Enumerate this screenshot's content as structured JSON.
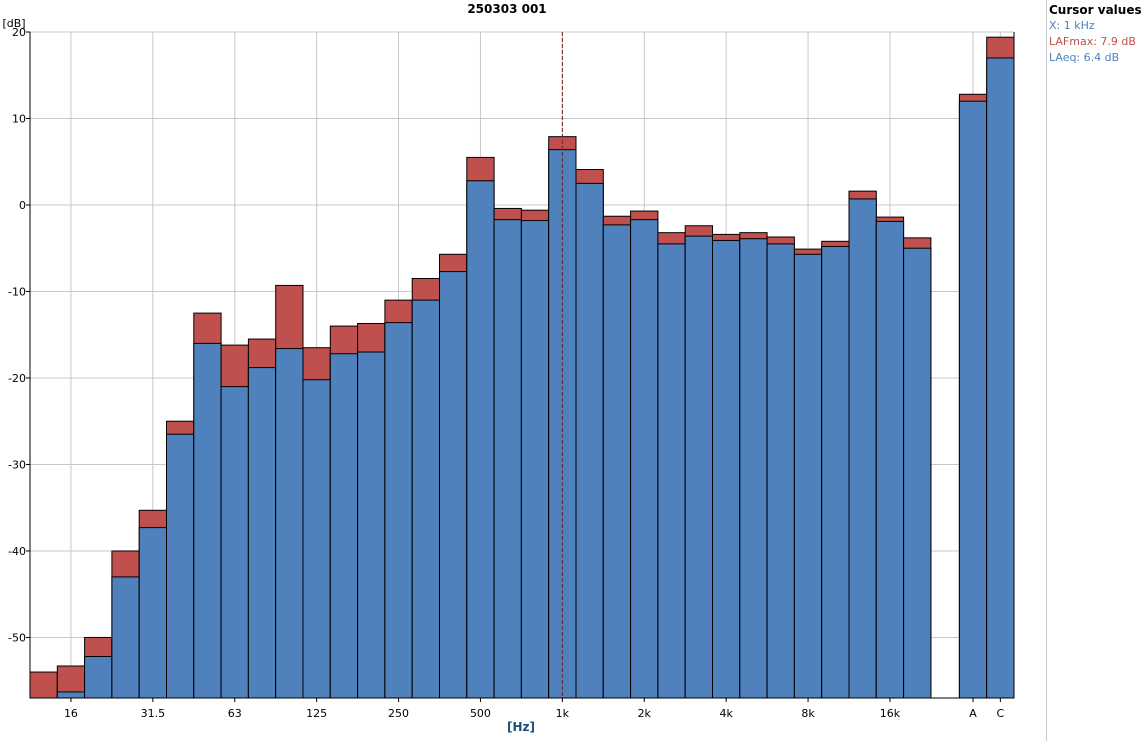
{
  "chart_data": {
    "type": "bar",
    "title": "250303 001",
    "xlabel": "[Hz]",
    "ylabel": "[dB]",
    "ylim": [
      -57,
      20
    ],
    "yticks": [
      20,
      10,
      0,
      -10,
      -20,
      -30,
      -40,
      -50
    ],
    "grid": true,
    "x_scale": "log (1/3-octave bands)",
    "categories": [
      "12.5",
      "16",
      "20",
      "25",
      "31.5",
      "40",
      "50",
      "63",
      "80",
      "100",
      "125",
      "160",
      "200",
      "250",
      "315",
      "400",
      "500",
      "630",
      "800",
      "1k",
      "1.25k",
      "1.6k",
      "2k",
      "2.5k",
      "3.15k",
      "4k",
      "5k",
      "6.3k",
      "8k",
      "10k",
      "12.5k",
      "16k",
      "20k",
      "A",
      "C"
    ],
    "tick_labels": [
      "16",
      "31.5",
      "63",
      "125",
      "250",
      "500",
      "1k",
      "2k",
      "4k",
      "8k",
      "16k",
      "A",
      "C"
    ],
    "tick_categories": [
      "16",
      "31.5",
      "63",
      "125",
      "250",
      "500",
      "1k",
      "2k",
      "4k",
      "8k",
      "16k",
      "A",
      "C"
    ],
    "series": [
      {
        "name": "LAFmax",
        "color": "#c0504d",
        "values": [
          -54.0,
          -53.3,
          -50.0,
          -40.0,
          -35.3,
          -25.0,
          -12.5,
          -16.2,
          -15.5,
          -9.3,
          -16.5,
          -14.0,
          -13.7,
          -11.0,
          -8.5,
          -5.7,
          5.5,
          -0.4,
          -0.6,
          7.9,
          4.1,
          -1.3,
          -0.7,
          -3.2,
          -2.4,
          -3.4,
          -3.2,
          -3.7,
          -5.1,
          -4.2,
          1.6,
          -1.4,
          -3.8,
          12.8,
          19.4
        ]
      },
      {
        "name": "LAeq",
        "color": "#4f81bd",
        "values": [
          null,
          -56.3,
          -52.2,
          -43.0,
          -37.3,
          -26.5,
          -16.0,
          -21.0,
          -18.8,
          -16.6,
          -20.2,
          -17.2,
          -17.0,
          -13.6,
          -11.0,
          -7.7,
          2.8,
          -1.7,
          -1.8,
          6.4,
          2.5,
          -2.3,
          -1.7,
          -4.5,
          -3.6,
          -4.1,
          -3.9,
          -4.5,
          -5.7,
          -4.8,
          0.7,
          -1.9,
          -5.0,
          12.0,
          17.0
        ]
      }
    ],
    "cursor": {
      "category": "1k",
      "label": "1 kHz"
    }
  },
  "cursor_panel": {
    "title": "Cursor values",
    "rows": [
      {
        "text": "X: 1 kHz",
        "color": "#4f81bd"
      },
      {
        "text": "LAFmax: 7.9 dB",
        "color": "#c0504d"
      },
      {
        "text": "LAeq: 6.4 dB",
        "color": "#4f81bd"
      }
    ]
  }
}
